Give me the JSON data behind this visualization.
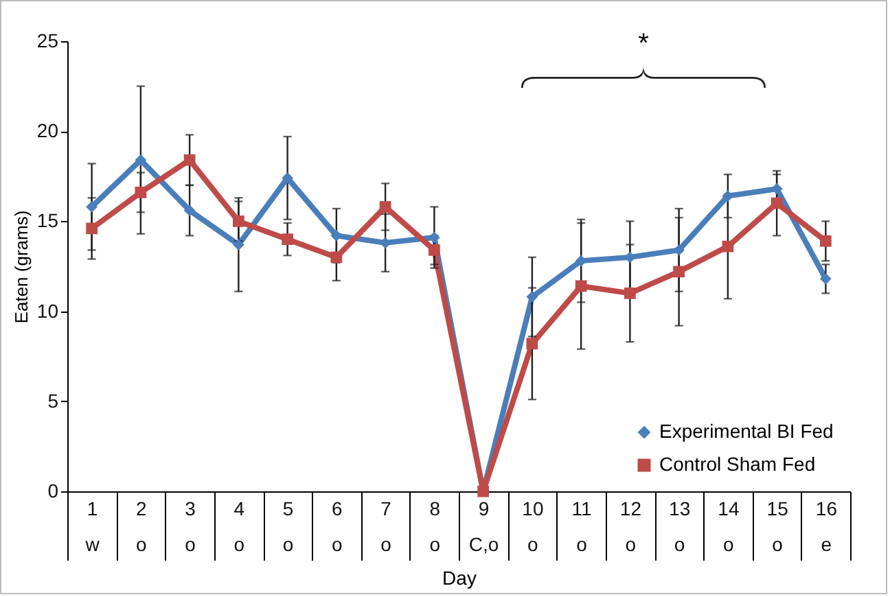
{
  "chart_data": {
    "type": "line",
    "xlabel": "Day",
    "ylabel": "Eaten (grams)",
    "categories": [
      "1\nw",
      "2\no",
      "3\no",
      "4\no",
      "5\no",
      "6\no",
      "7\no",
      "8\no",
      "9\nC,o",
      "10\no",
      "11\no",
      "12\no",
      "13\no",
      "14\no",
      "15\no",
      "16\ne"
    ],
    "series": [
      {
        "name": "Experimental BI Fed",
        "color": "#4a7ebb",
        "marker": "diamond",
        "values": [
          15.8,
          18.4,
          15.6,
          13.7,
          17.4,
          14.2,
          13.8,
          14.1,
          0,
          10.8,
          12.8,
          13.0,
          13.4,
          16.4,
          16.8,
          11.8
        ],
        "errors": [
          2.4,
          4.1,
          1.4,
          2.6,
          2.3,
          1.5,
          1.6,
          1.7,
          null,
          2.2,
          2.3,
          2.0,
          2.3,
          1.2,
          0.8,
          0.8
        ]
      },
      {
        "name": "Control Sham Fed",
        "color": "#be4b48",
        "marker": "square",
        "values": [
          14.6,
          16.6,
          18.4,
          15.0,
          14.0,
          13.0,
          15.8,
          13.4,
          0,
          8.2,
          11.4,
          11.0,
          12.2,
          13.6,
          16.0,
          13.9
        ],
        "errors": [
          1.7,
          1.1,
          1.4,
          1.1,
          0.9,
          1.3,
          1.3,
          0.8,
          null,
          3.1,
          3.5,
          2.7,
          3.0,
          2.9,
          1.8,
          1.1
        ]
      }
    ],
    "ylim": [
      0,
      25
    ],
    "yticks": [
      0,
      5,
      10,
      15,
      20,
      25
    ],
    "grid": false,
    "legend": "bottom right",
    "annotations": [
      "*"
    ]
  }
}
